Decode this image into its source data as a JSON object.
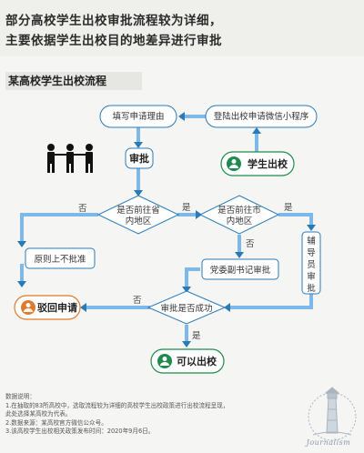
{
  "header": {
    "title_line1": "部分高校学生出校审批流程较为详细，",
    "title_line2": "主要依据学生出校目的地差异进行审批"
  },
  "section_title": "某高校学生出校流程",
  "nodes": {
    "fill_reason": "填写申请理由",
    "login_app": "登陆出校申请微信小程序",
    "student_out": "学生出校",
    "approve": "审批",
    "q_province_1": "是否前往省",
    "q_province_2": "内地区",
    "q_city_1": "是否前往市",
    "q_city_2": "内地区",
    "deny_principle": "原则上不批准",
    "party_secretary": "党委副书记审批",
    "counselor": [
      "辅",
      "导",
      "员",
      "审",
      "批"
    ],
    "q_success": "审批是否成功",
    "reject": "驳回申请",
    "can_leave": "可以出校"
  },
  "edge_labels": {
    "no1": "否",
    "yes1": "是",
    "no2": "否",
    "yes2": "是",
    "no3": "否",
    "yes3": "是"
  },
  "notes": {
    "heading": "数据说明：",
    "line1": "1.在抽取的83所高校中，选取流程较为详细的高校学生出校政策进行出校流程呈现，",
    "line1b": "此处选择某高校为代表。",
    "line2": "2.数据来源：某高校官方微信公众号。",
    "line3": "3.该高校学生出校相关政策发布时间：2020年9月6日。"
  },
  "brand": "Journalism",
  "colors": {
    "accent_blue": "#2a7ab8",
    "edge_blue": "#7db8e8",
    "student_green": "#1f8a4c",
    "reject_orange": "#e07a2a"
  },
  "icons": [
    "people-icon",
    "user-icon",
    "lighthouse-icon"
  ]
}
